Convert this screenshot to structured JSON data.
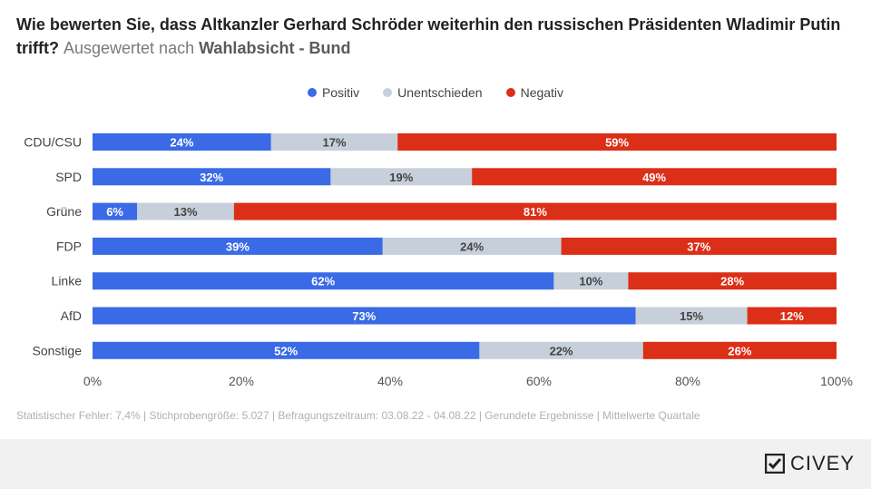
{
  "title": {
    "main": "Wie bewerten Sie, dass Altkanzler Gerhard Schröder weiterhin den russischen Präsidenten Wladimir Putin trifft?",
    "sub_prefix": "Ausgewertet nach",
    "sub_bold": "Wahlabsicht - Bund"
  },
  "legend": [
    {
      "label": "Positiv",
      "color": "#3a6ae6"
    },
    {
      "label": "Unentschieden",
      "color": "#c7d0da"
    },
    {
      "label": "Negativ",
      "color": "#dc2f17"
    }
  ],
  "chart_data": {
    "type": "bar",
    "orientation": "horizontal",
    "stacked": true,
    "categories": [
      "CDU/CSU",
      "SPD",
      "Grüne",
      "FDP",
      "Linke",
      "AfD",
      "Sonstige"
    ],
    "series": [
      {
        "name": "Positiv",
        "color": "#3a6ae6",
        "values": [
          24,
          32,
          6,
          39,
          62,
          73,
          52
        ]
      },
      {
        "name": "Unentschieden",
        "color": "#c7d0da",
        "values": [
          17,
          19,
          13,
          24,
          10,
          15,
          22
        ]
      },
      {
        "name": "Negativ",
        "color": "#dc2f17",
        "values": [
          59,
          49,
          81,
          37,
          28,
          12,
          26
        ]
      }
    ],
    "xlim": [
      0,
      100
    ],
    "xticks": [
      "0%",
      "20%",
      "40%",
      "60%",
      "80%",
      "100%"
    ],
    "value_suffix": "%",
    "legend_position": "top-center"
  },
  "footnote": "Statistischer Fehler: 7,4% | Stichprobengröße: 5.027 | Befragungszeitraum: 03.08.22 - 04.08.22 | Gerundete Ergebnisse | Mittelwerte Quartale",
  "brand": "CIVEY"
}
